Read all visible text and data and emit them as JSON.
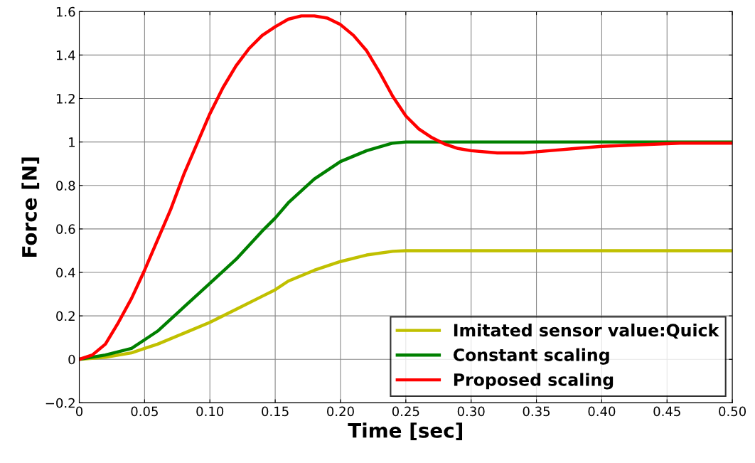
{
  "chart_data": {
    "type": "line",
    "xlabel": "Time [sec]",
    "ylabel": "Force [N]",
    "xlim": [
      0,
      0.5
    ],
    "ylim": [
      -0.2,
      1.6
    ],
    "xticks": [
      0,
      {
        "value": 0.05,
        "label": "0.05"
      },
      {
        "value": 0.1,
        "label": "0.10"
      },
      {
        "value": 0.15,
        "label": "0.15"
      },
      {
        "value": 0.2,
        "label": "0.20"
      },
      {
        "value": 0.25,
        "label": "0.25"
      },
      {
        "value": 0.3,
        "label": "0.30"
      },
      {
        "value": 0.35,
        "label": "0.35"
      },
      {
        "value": 0.4,
        "label": "0.40"
      },
      {
        "value": 0.45,
        "label": "0.45"
      },
      {
        "value": 0.5,
        "label": "0.50"
      }
    ],
    "yticks": [
      {
        "value": -0.2,
        "label": "−0.2"
      },
      0,
      0.2,
      0.4,
      0.6,
      0.8,
      1,
      1.2,
      1.4,
      1.6
    ],
    "grid": true,
    "legend": "bottom right",
    "marker": "none",
    "line_style": "solid",
    "series": [
      {
        "name": "Imitated sensor value:Quick",
        "color": "#c0c000",
        "x": [
          0,
          0.02,
          0.04,
          0.05,
          0.06,
          0.08,
          0.1,
          0.12,
          0.14,
          0.15,
          0.16,
          0.18,
          0.2,
          0.22,
          0.24,
          0.25,
          0.5
        ],
        "values": [
          0,
          0.01,
          0.03,
          0.05,
          0.07,
          0.12,
          0.17,
          0.23,
          0.29,
          0.32,
          0.36,
          0.41,
          0.45,
          0.48,
          0.497,
          0.5,
          0.5
        ]
      },
      {
        "name": "Constant scaling",
        "color": "#008000",
        "x": [
          0,
          0.02,
          0.04,
          0.05,
          0.06,
          0.08,
          0.1,
          0.12,
          0.14,
          0.15,
          0.16,
          0.18,
          0.2,
          0.22,
          0.24,
          0.25,
          0.5
        ],
        "values": [
          0,
          0.02,
          0.05,
          0.09,
          0.13,
          0.24,
          0.35,
          0.46,
          0.59,
          0.65,
          0.72,
          0.83,
          0.91,
          0.96,
          0.995,
          1.0,
          1.0
        ]
      },
      {
        "name": "Proposed scaling",
        "color": "#ff0000",
        "x": [
          0,
          0.01,
          0.02,
          0.03,
          0.04,
          0.05,
          0.06,
          0.07,
          0.08,
          0.09,
          0.1,
          0.11,
          0.12,
          0.13,
          0.14,
          0.15,
          0.16,
          0.17,
          0.18,
          0.19,
          0.2,
          0.21,
          0.22,
          0.23,
          0.24,
          0.25,
          0.26,
          0.27,
          0.28,
          0.29,
          0.3,
          0.32,
          0.34,
          0.36,
          0.38,
          0.4,
          0.42,
          0.44,
          0.46,
          0.5
        ],
        "values": [
          0,
          0.02,
          0.07,
          0.17,
          0.28,
          0.41,
          0.55,
          0.69,
          0.85,
          0.99,
          1.13,
          1.25,
          1.35,
          1.43,
          1.49,
          1.53,
          1.565,
          1.58,
          1.58,
          1.57,
          1.54,
          1.49,
          1.42,
          1.32,
          1.21,
          1.12,
          1.06,
          1.02,
          0.99,
          0.97,
          0.96,
          0.95,
          0.95,
          0.96,
          0.97,
          0.98,
          0.985,
          0.99,
          0.995,
          0.995
        ]
      }
    ]
  }
}
